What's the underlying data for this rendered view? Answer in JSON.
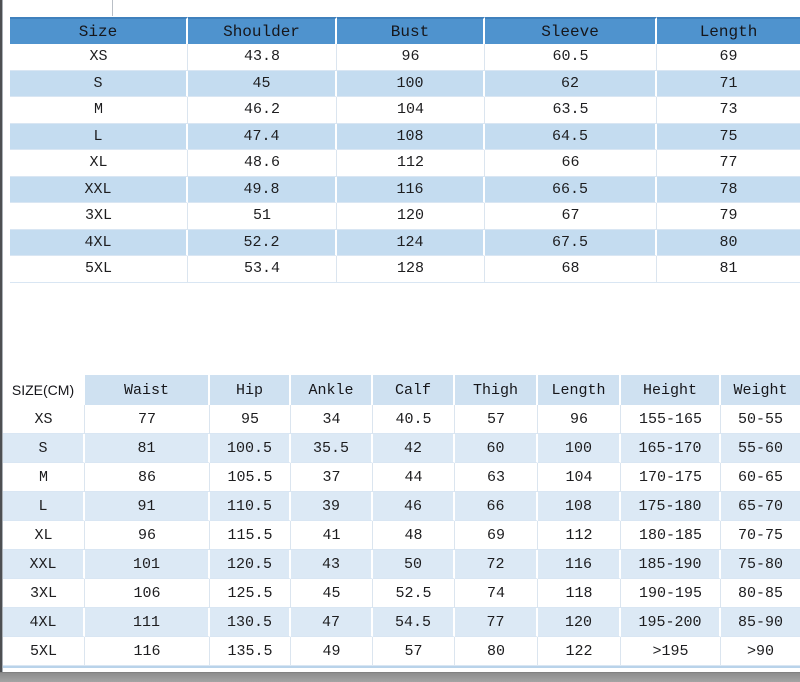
{
  "colors": {
    "header_blue": "#4f93ce",
    "stripe_blue_top_table": "#c4dcf0",
    "stripe_blue_bottom_table": "#dce9f5",
    "bottom_header_blue": "#cfe1f1",
    "text": "#1d1d1f",
    "left_line_gray": "#4d4f52",
    "bottom_bar_gray": "#9a9a9a"
  },
  "chart_data": [
    {
      "type": "table",
      "columns": [
        "Size",
        "Shoulder",
        "Bust",
        "Sleeve",
        "Length"
      ],
      "rows": [
        [
          "XS",
          "43.8",
          "96",
          "60.5",
          "69"
        ],
        [
          "S",
          "45",
          "100",
          "62",
          "71"
        ],
        [
          "M",
          "46.2",
          "104",
          "63.5",
          "73"
        ],
        [
          "L",
          "47.4",
          "108",
          "64.5",
          "75"
        ],
        [
          "XL",
          "48.6",
          "112",
          "66",
          "77"
        ],
        [
          "XXL",
          "49.8",
          "116",
          "66.5",
          "78"
        ],
        [
          "3XL",
          "51",
          "120",
          "67",
          "79"
        ],
        [
          "4XL",
          "52.2",
          "124",
          "67.5",
          "80"
        ],
        [
          "5XL",
          "53.4",
          "128",
          "68",
          "81"
        ]
      ]
    },
    {
      "type": "table",
      "columns": [
        "SIZE(CM)",
        "Waist",
        "Hip",
        "Ankle",
        "Calf",
        "Thigh",
        "Length",
        "Height",
        "Weight"
      ],
      "rows": [
        [
          "XS",
          "77",
          "95",
          "34",
          "40.5",
          "57",
          "96",
          "155-165",
          "50-55"
        ],
        [
          "S",
          "81",
          "100.5",
          "35.5",
          "42",
          "60",
          "100",
          "165-170",
          "55-60"
        ],
        [
          "M",
          "86",
          "105.5",
          "37",
          "44",
          "63",
          "104",
          "170-175",
          "60-65"
        ],
        [
          "L",
          "91",
          "110.5",
          "39",
          "46",
          "66",
          "108",
          "175-180",
          "65-70"
        ],
        [
          "XL",
          "96",
          "115.5",
          "41",
          "48",
          "69",
          "112",
          "180-185",
          "70-75"
        ],
        [
          "XXL",
          "101",
          "120.5",
          "43",
          "50",
          "72",
          "116",
          "185-190",
          "75-80"
        ],
        [
          "3XL",
          "106",
          "125.5",
          "45",
          "52.5",
          "74",
          "118",
          "190-195",
          "80-85"
        ],
        [
          "4XL",
          "111",
          "130.5",
          "47",
          "54.5",
          "77",
          "120",
          "195-200",
          "85-90"
        ],
        [
          "5XL",
          "116",
          "135.5",
          "49",
          "57",
          "80",
          "122",
          ">195",
          ">90"
        ]
      ]
    }
  ]
}
